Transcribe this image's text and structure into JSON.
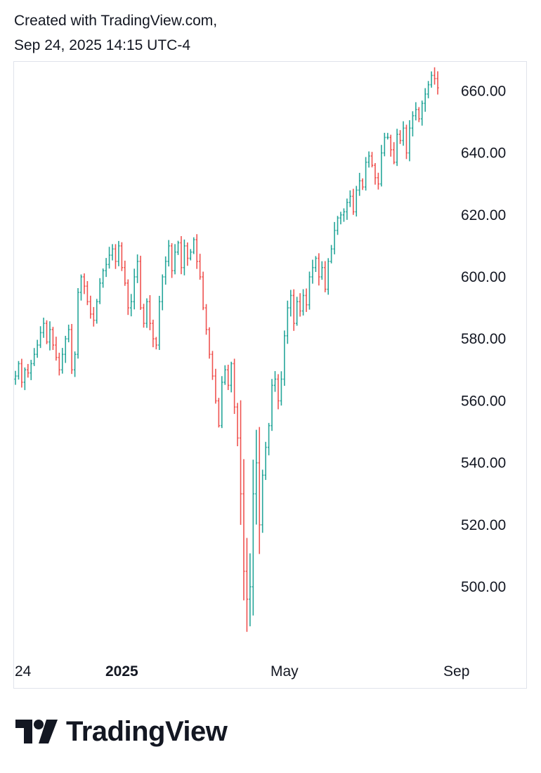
{
  "header": {
    "line1": "Created with TradingView.com,",
    "line2": "Sep 24, 2025 14:15 UTC-4"
  },
  "brand": {
    "name": "TradingView",
    "icon": "tradingview-logo-icon"
  },
  "colors": {
    "up": "#26a69a",
    "down": "#ef5350",
    "text": "#131722",
    "border": "#e0e3eb"
  },
  "chart_data": {
    "type": "ohlc",
    "title": "",
    "xlabel": "",
    "ylabel": "",
    "ylim": [
      480,
      668
    ],
    "grid": false,
    "y_ticks": [
      "500.00",
      "520.00",
      "540.00",
      "560.00",
      "580.00",
      "600.00",
      "620.00",
      "640.00",
      "660.00"
    ],
    "x_ticks": [
      {
        "label": "24",
        "bold": false,
        "index": 0
      },
      {
        "label": "2025",
        "bold": true,
        "index": 34
      },
      {
        "label": "May",
        "bold": false,
        "index": 86
      },
      {
        "label": "Sep",
        "bold": false,
        "index": 141
      }
    ],
    "closes": [
      568,
      572,
      566,
      570,
      569,
      572,
      575,
      578,
      582,
      585,
      579,
      583,
      578,
      574,
      570,
      575,
      580,
      583,
      570,
      575,
      595,
      600,
      597,
      592,
      588,
      586,
      592,
      598,
      602,
      604,
      607,
      609,
      605,
      610,
      603,
      598,
      590,
      592,
      600,
      605,
      590,
      585,
      592,
      585,
      580,
      578,
      592,
      600,
      605,
      610,
      602,
      608,
      611,
      603,
      610,
      606,
      608,
      612,
      605,
      600,
      590,
      583,
      575,
      568,
      560,
      552,
      566,
      570,
      565,
      572,
      558,
      548,
      530,
      505,
      496,
      500,
      530,
      540,
      520,
      536,
      545,
      552,
      565,
      567,
      560,
      567,
      581,
      590,
      594,
      585,
      592,
      589,
      594,
      591,
      600,
      603,
      606,
      600,
      603,
      596,
      605,
      609,
      615,
      619,
      620,
      621,
      624,
      626,
      621,
      628,
      631,
      629,
      637,
      639,
      636,
      632,
      630,
      640,
      645,
      645,
      641,
      637,
      646,
      644,
      648,
      640,
      648,
      652,
      654,
      651,
      656,
      659,
      662,
      665,
      664,
      661
    ]
  }
}
